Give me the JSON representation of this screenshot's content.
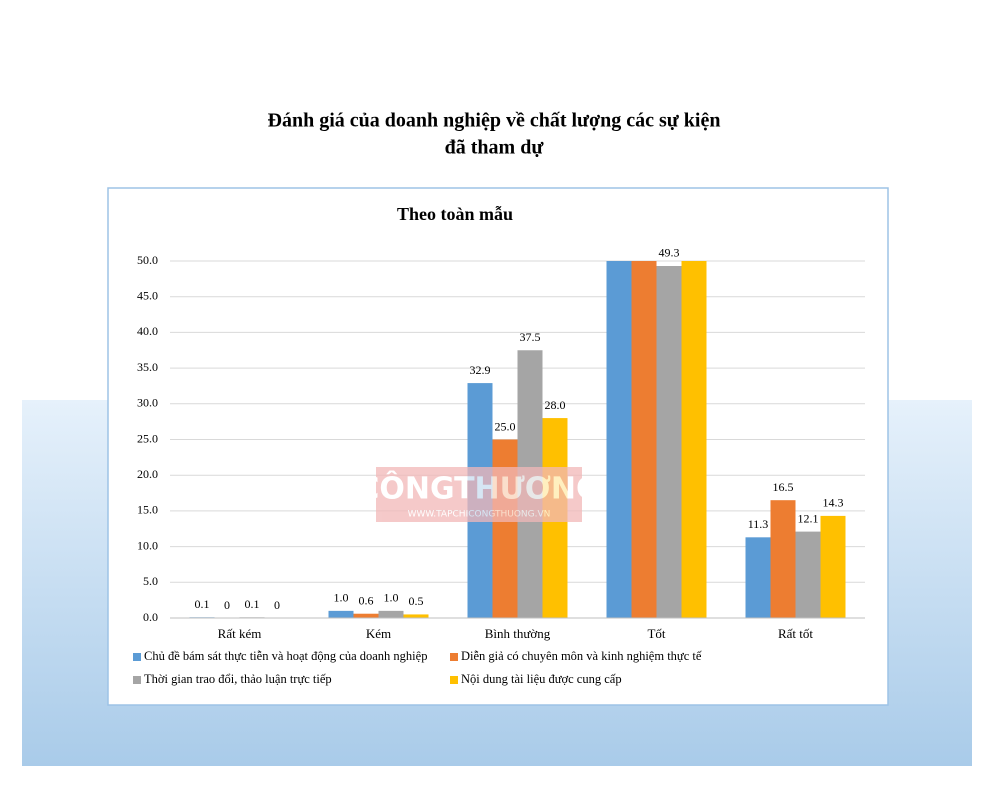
{
  "header": {
    "title_lines": [
      "Đánh giá của doanh nghiệp về chất lượng các sự kiện",
      "đã tham dự"
    ]
  },
  "watermark": {
    "brand": "CÔNGTHƯƠNG",
    "url": "WWW.TAPCHICONGTHUONG.VN"
  },
  "chart_data": {
    "type": "bar",
    "title": "Theo toàn mẫu",
    "categories": [
      "Rất kém",
      "Kém",
      "Bình thường",
      "Tốt",
      "Rất tốt"
    ],
    "series": [
      {
        "name": "Chủ đề bám sát thực tiễn và hoạt động của doanh nghiệp",
        "color": "#5b9bd5",
        "values": [
          0.1,
          1.0,
          32.9,
          50,
          11.3
        ],
        "value_labels": [
          "0.1",
          "1.0",
          "32.9",
          null,
          "11.3"
        ]
      },
      {
        "name": "Diễn giả có chuyên môn và kinh nghiệm thực tế",
        "color": "#ed7d31",
        "values": [
          0,
          0.6,
          25.0,
          50,
          16.5
        ],
        "value_labels": [
          "0",
          "0.6",
          "25.0",
          null,
          "16.5"
        ]
      },
      {
        "name": "Thời gian trao đổi, thảo luận trực tiếp",
        "color": "#a5a5a5",
        "values": [
          0.1,
          1.0,
          37.5,
          49.3,
          12.1
        ],
        "value_labels": [
          "0.1",
          "1.0",
          "37.5",
          "49.3",
          "12.1"
        ]
      },
      {
        "name": "Nội dung tài liệu được cung cấp",
        "color": "#ffc000",
        "values": [
          0,
          0.5,
          28.0,
          50,
          14.3
        ],
        "value_labels": [
          "0",
          "0.5",
          "28.0",
          null,
          "14.3"
        ]
      }
    ],
    "ylim": [
      0,
      50
    ],
    "yticks": [
      {
        "value": 0,
        "label": "0.0"
      },
      {
        "value": 5,
        "label": "5.0"
      },
      {
        "value": 10,
        "label": "10.0"
      },
      {
        "value": 15,
        "label": "15.0"
      },
      {
        "value": 20,
        "label": "20.0"
      },
      {
        "value": 25,
        "label": "25.0"
      },
      {
        "value": 30,
        "label": "30.0"
      },
      {
        "value": 35,
        "label": "35.0"
      },
      {
        "value": 40,
        "label": "40.0"
      },
      {
        "value": 45,
        "label": "45.0"
      },
      {
        "value": 50,
        "label": "50.0"
      }
    ],
    "grid": true,
    "legend": "bottom"
  }
}
